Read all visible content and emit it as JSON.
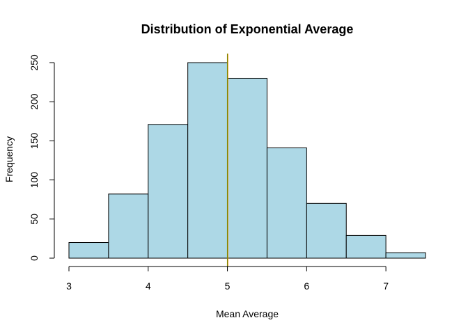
{
  "chart_data": {
    "type": "bar",
    "title": "Distribution of Exponential Average",
    "xlabel": "Mean Average",
    "ylabel": "Frequency",
    "bins": [
      {
        "x0": 3.0,
        "x1": 3.5,
        "count": 20
      },
      {
        "x0": 3.5,
        "x1": 4.0,
        "count": 82
      },
      {
        "x0": 4.0,
        "x1": 4.5,
        "count": 171
      },
      {
        "x0": 4.5,
        "x1": 5.0,
        "count": 250
      },
      {
        "x0": 5.0,
        "x1": 5.5,
        "count": 230
      },
      {
        "x0": 5.5,
        "x1": 6.0,
        "count": 141
      },
      {
        "x0": 6.0,
        "x1": 6.5,
        "count": 70
      },
      {
        "x0": 6.5,
        "x1": 7.0,
        "count": 29
      },
      {
        "x0": 7.0,
        "x1": 7.5,
        "count": 7
      }
    ],
    "xlim": [
      3.0,
      7.5
    ],
    "ylim": [
      0,
      260
    ],
    "x_ticks": [
      "3",
      "4",
      "5",
      "6",
      "7"
    ],
    "y_ticks": [
      "0",
      "50",
      "100",
      "150",
      "200",
      "250"
    ],
    "vlines": [
      {
        "x": 5.0,
        "color": "#008000"
      },
      {
        "x": 5.005,
        "color": "#ff8c00"
      }
    ],
    "bar_color": "#add8e6",
    "grid": false,
    "legend": "none"
  }
}
